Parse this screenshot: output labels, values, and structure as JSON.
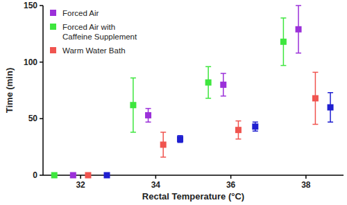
{
  "chart_data": {
    "type": "scatter",
    "x_label": "Rectal Temperature (°C)",
    "y_label": "Time (min)",
    "xlim": [
      31,
      39
    ],
    "xticks": [
      32,
      34,
      36,
      38
    ],
    "ylim": [
      0,
      150
    ],
    "yticks": [
      0,
      50,
      100,
      150
    ],
    "legend": "upper left",
    "marker": "square",
    "series": [
      {
        "name": "Forced  Air",
        "color": "#9b30d9",
        "x": [
          31.8,
          33.8,
          35.8,
          37.8
        ],
        "values": [
          0,
          53,
          80,
          129
        ],
        "errors": [
          0,
          6,
          10,
          21
        ]
      },
      {
        "name": "Forced Air with\nCaffeine Supplement",
        "color": "#3ee63e",
        "x": [
          31.3,
          33.4,
          35.4,
          37.4
        ],
        "values": [
          0,
          62,
          82,
          118
        ],
        "errors": [
          0,
          24,
          14,
          21
        ]
      },
      {
        "name": "Warm Water Bath",
        "color": "#f0544f",
        "x": [
          32.2,
          34.2,
          36.2,
          38.25
        ],
        "values": [
          0,
          27,
          40,
          68
        ],
        "errors": [
          0,
          11,
          8,
          23
        ]
      },
      {
        "color": "#1f1fd0",
        "x": [
          32.7,
          34.65,
          36.65,
          38.65
        ],
        "values": [
          0,
          32,
          43,
          60
        ],
        "errors": [
          0,
          3,
          4,
          13
        ]
      }
    ]
  }
}
